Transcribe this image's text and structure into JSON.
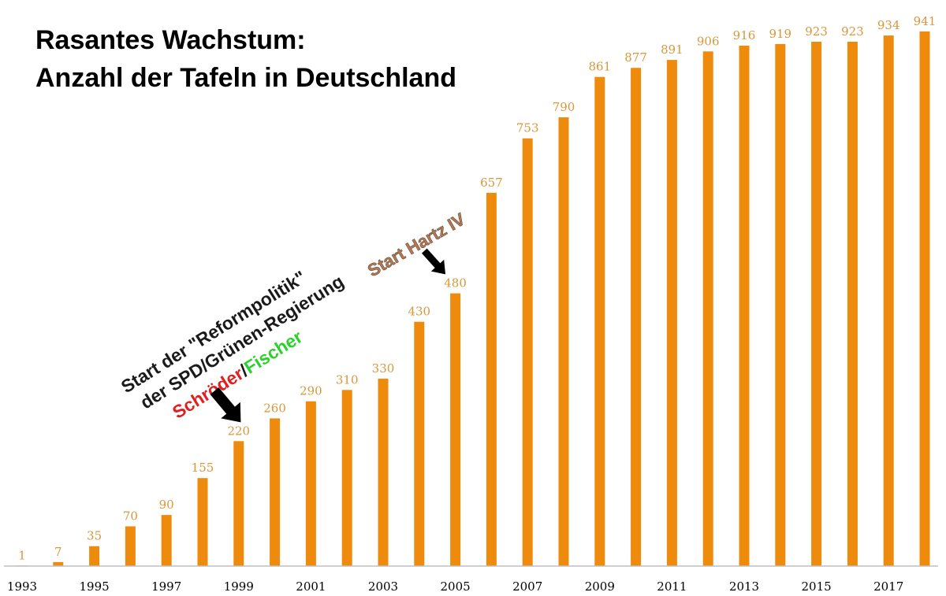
{
  "chart_data": {
    "type": "bar",
    "title_line1": "Rasantes Wachstum:",
    "title_line2": "Anzahl der Tafeln in Deutschland",
    "xlabel": "",
    "ylabel": "",
    "ylim": [
      0,
      960
    ],
    "grid": false,
    "categories": [
      "1993",
      "1994",
      "1995",
      "1996",
      "1997",
      "1998",
      "1999",
      "2000",
      "2001",
      "2002",
      "2003",
      "2004",
      "2005",
      "2006",
      "2007",
      "2008",
      "2009",
      "2010",
      "2011",
      "2012",
      "2013",
      "2014",
      "2015",
      "2016",
      "2017",
      "2018"
    ],
    "values": [
      1,
      7,
      35,
      70,
      90,
      155,
      220,
      260,
      290,
      310,
      330,
      430,
      480,
      657,
      753,
      790,
      861,
      877,
      891,
      906,
      916,
      919,
      923,
      923,
      934,
      941
    ],
    "xtick_labels": [
      "1993",
      "1995",
      "1997",
      "1999",
      "2001",
      "2003",
      "2005",
      "2007",
      "2009",
      "2011",
      "2013",
      "2015",
      "2017"
    ],
    "colors": {
      "bar": "#ee8b0c",
      "value_label": "#d9973a",
      "axis": "#bfbfbf"
    },
    "annotations": {
      "reform_line1": "Start der \"Reformpolitik\"",
      "reform_line2": "der SPD/Grünen-Regierung",
      "reform_line3_part1": "Schröder",
      "reform_line3_sep": "/",
      "reform_line3_part2": "Fischer",
      "hartz": "Start Hartz IV"
    }
  }
}
